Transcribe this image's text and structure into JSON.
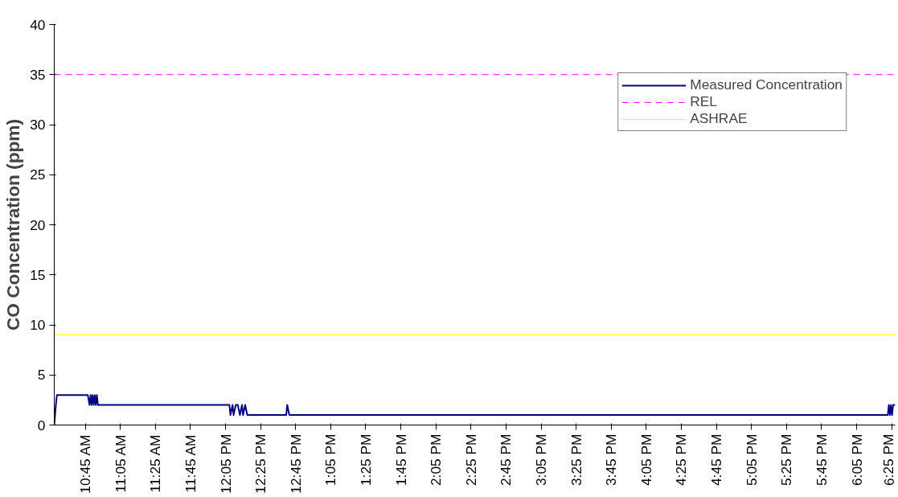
{
  "chart_data": {
    "type": "line",
    "ylabel": "CO Concentration (ppm)",
    "xlim": [
      10.455,
      18.45
    ],
    "ylim": [
      0,
      40
    ],
    "yticks": [
      0,
      5,
      10,
      15,
      20,
      25,
      30,
      35,
      40
    ],
    "xticks": [
      {
        "value": 10.75,
        "label": "10:45 AM"
      },
      {
        "value": 11.0833,
        "label": "11:05 AM"
      },
      {
        "value": 11.4167,
        "label": "11:25 AM"
      },
      {
        "value": 11.75,
        "label": "11:45 AM"
      },
      {
        "value": 12.0833,
        "label": "12:05 PM"
      },
      {
        "value": 12.4167,
        "label": "12:25 PM"
      },
      {
        "value": 12.75,
        "label": "12:45 PM"
      },
      {
        "value": 13.0833,
        "label": "1:05 PM"
      },
      {
        "value": 13.4167,
        "label": "1:25 PM"
      },
      {
        "value": 13.75,
        "label": "1:45 PM"
      },
      {
        "value": 14.0833,
        "label": "2:05 PM"
      },
      {
        "value": 14.4167,
        "label": "2:25 PM"
      },
      {
        "value": 14.75,
        "label": "2:45 PM"
      },
      {
        "value": 15.0833,
        "label": "3:05 PM"
      },
      {
        "value": 15.4167,
        "label": "3:25 PM"
      },
      {
        "value": 15.75,
        "label": "3:45 PM"
      },
      {
        "value": 16.0833,
        "label": "4:05 PM"
      },
      {
        "value": 16.4167,
        "label": "4:25 PM"
      },
      {
        "value": 16.75,
        "label": "4:45 PM"
      },
      {
        "value": 17.0833,
        "label": "5:05 PM"
      },
      {
        "value": 17.4167,
        "label": "5:25 PM"
      },
      {
        "value": 17.75,
        "label": "5:45 PM"
      },
      {
        "value": 18.0833,
        "label": "6:05 PM"
      },
      {
        "value": 18.4167,
        "label": "6:25 PM"
      }
    ],
    "legend": "top right",
    "grid": false,
    "series": [
      {
        "name": "Measured Concentration",
        "color": "#000080",
        "line_style": "solid",
        "x": [
          10.455,
          10.47,
          10.48,
          10.774,
          10.79,
          10.8,
          10.81,
          10.82,
          10.83,
          10.84,
          10.85,
          10.86,
          10.87,
          10.89,
          12.12,
          12.13,
          12.15,
          12.16,
          12.18,
          12.2,
          12.22,
          12.24,
          12.25,
          12.27,
          12.29,
          12.66,
          12.67,
          12.69,
          18.38,
          18.39,
          18.4,
          18.41,
          18.42,
          18.43,
          18.45
        ],
        "values": [
          0,
          2,
          3,
          3,
          2,
          3,
          2,
          3,
          2,
          3,
          2,
          3,
          2,
          2,
          2,
          1,
          2,
          1,
          2,
          2,
          1,
          2,
          1,
          2,
          1,
          1,
          2,
          1,
          1,
          2,
          1,
          2,
          1,
          2,
          2
        ]
      },
      {
        "name": "REL",
        "color": "#ff00ff",
        "line_style": "dashed",
        "x": [
          10.455,
          18.45
        ],
        "values": [
          35,
          35
        ]
      },
      {
        "name": "ASHRAE",
        "color": "#ffff00",
        "line_style": "solid",
        "x": [
          10.455,
          18.45
        ],
        "values": [
          9,
          9
        ]
      }
    ]
  }
}
